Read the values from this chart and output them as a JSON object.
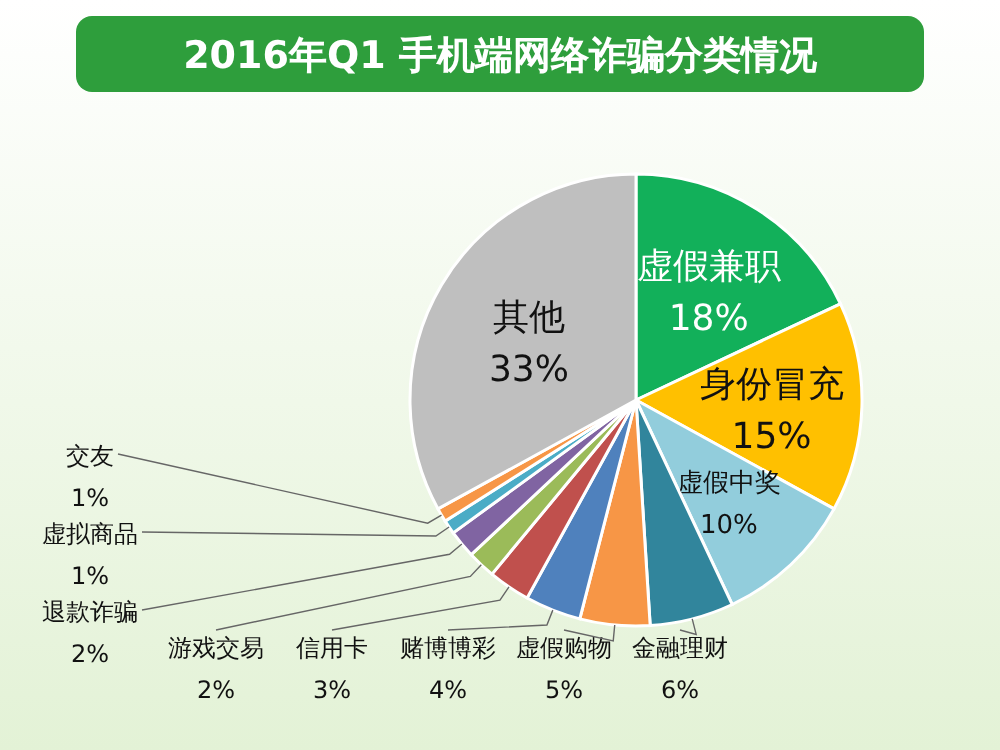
{
  "chart_data": {
    "type": "pie",
    "title": "2016年Q1 手机端网络诈骗分类情况",
    "categories": [
      "虚假兼职",
      "身份冒充",
      "虚假中奖",
      "金融理财",
      "虚假购物",
      "赌博博彩",
      "信用卡",
      "游戏交易",
      "退款诈骗",
      "虚拟商品",
      "交友",
      "其他"
    ],
    "values": [
      18,
      15,
      10,
      6,
      5,
      4,
      3,
      2,
      2,
      1,
      1,
      33
    ],
    "value_labels": [
      "18%",
      "15%",
      "10%",
      "6%",
      "5%",
      "4%",
      "3%",
      "2%",
      "2%",
      "1%",
      "1%",
      "33%"
    ],
    "colors": [
      "#12b05a",
      "#ffc000",
      "#92cddc",
      "#31859c",
      "#f79646",
      "#4f81bd",
      "#c0504d",
      "#9bbb59",
      "#8064a2",
      "#4bacc6",
      "#f79646",
      "#bfbfbf"
    ]
  }
}
